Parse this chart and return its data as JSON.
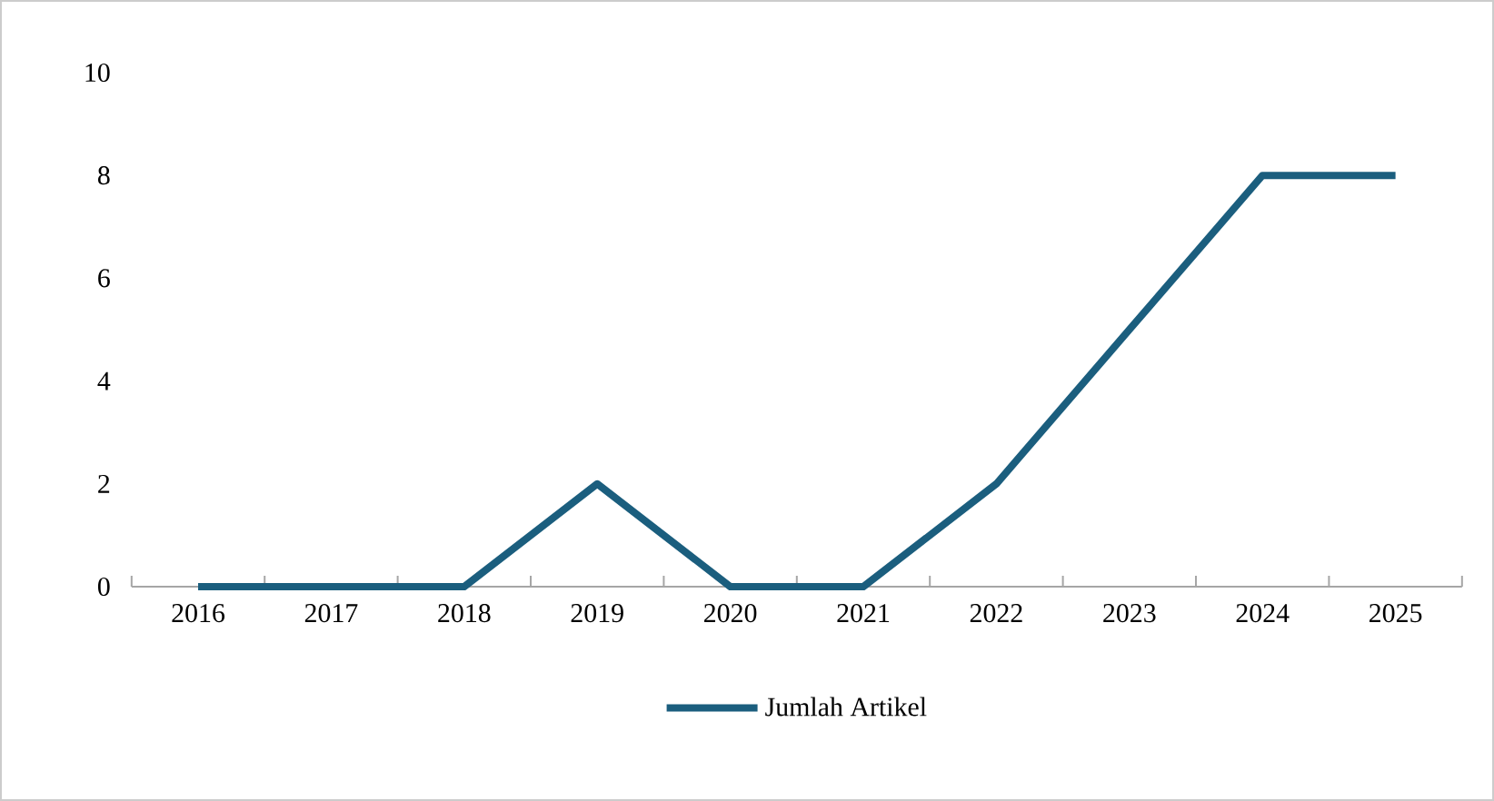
{
  "chart_data": {
    "type": "line",
    "categories": [
      "2016",
      "2017",
      "2018",
      "2019",
      "2020",
      "2021",
      "2022",
      "2023",
      "2024",
      "2025"
    ],
    "series": [
      {
        "name": "Jumlah Artikel",
        "color": "#1b5e7e",
        "values": [
          0,
          0,
          0,
          2,
          0,
          0,
          2,
          5,
          8,
          8
        ]
      }
    ],
    "ylim": [
      0,
      10
    ],
    "yticks": [
      0,
      2,
      4,
      6,
      8,
      10
    ],
    "grid": false,
    "legend": "bottom",
    "marker": "none",
    "line_style": "solid"
  }
}
